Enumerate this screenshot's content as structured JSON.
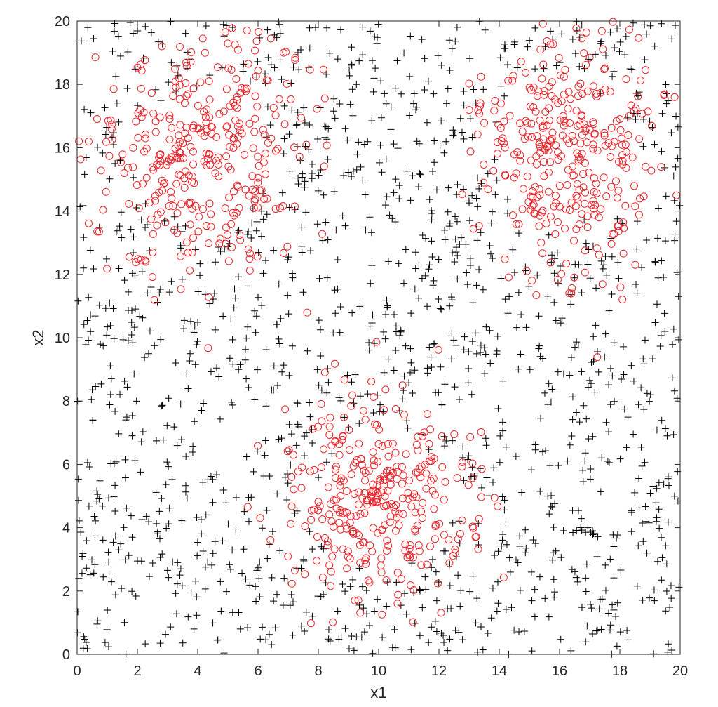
{
  "chart_data": {
    "type": "scatter",
    "title": "",
    "xlabel": "x1",
    "ylabel": "x2",
    "xlim": [
      0,
      20
    ],
    "ylim": [
      0,
      20
    ],
    "xticks": [
      "0",
      "2",
      "4",
      "6",
      "8",
      "10",
      "12",
      "14",
      "16",
      "18",
      "20"
    ],
    "yticks": [
      "0",
      "2",
      "4",
      "6",
      "8",
      "10",
      "12",
      "14",
      "16",
      "18",
      "20"
    ],
    "grid": false,
    "legend": "none",
    "series": [
      {
        "marker": "plus",
        "color": "#000000",
        "distribution": "uniform",
        "count": 1500,
        "x_range": [
          0,
          20
        ],
        "y_range": [
          0,
          20
        ],
        "excluded_clusters": [
          {
            "center": [
              4.0,
              15.8
            ],
            "radius": 3.0
          },
          {
            "center": [
              16.2,
              16.0
            ],
            "radius": 3.0
          },
          {
            "center": [
              10.0,
              4.8
            ],
            "radius": 2.6
          }
        ]
      },
      {
        "marker": "circle",
        "color": "#e8262d",
        "distribution": "gaussian-clusters",
        "clusters": [
          {
            "center": [
              4.0,
              15.8
            ],
            "std": [
              1.7,
              1.9
            ],
            "count": 340
          },
          {
            "center": [
              16.3,
              16.0
            ],
            "std": [
              1.5,
              1.9
            ],
            "count": 330
          },
          {
            "center": [
              10.0,
              4.8
            ],
            "std": [
              1.6,
              1.6
            ],
            "count": 330
          }
        ]
      }
    ]
  }
}
